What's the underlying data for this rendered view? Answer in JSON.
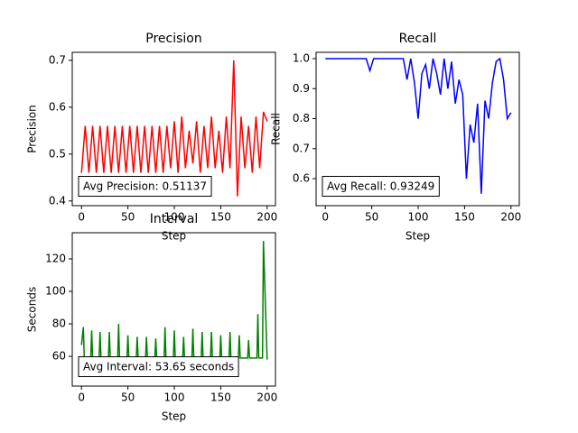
{
  "chart_data": [
    {
      "type": "line",
      "title": "Precision",
      "xlabel": "Step",
      "ylabel": "Precision",
      "annotation": "Avg Precision: 0.51137",
      "x": [
        0,
        4,
        8,
        12,
        16,
        20,
        24,
        28,
        32,
        36,
        40,
        44,
        48,
        52,
        56,
        60,
        64,
        68,
        72,
        76,
        80,
        84,
        88,
        92,
        96,
        100,
        104,
        108,
        112,
        116,
        120,
        124,
        128,
        132,
        136,
        140,
        144,
        148,
        152,
        156,
        160,
        164,
        168,
        172,
        176,
        180,
        184,
        188,
        192,
        196,
        200
      ],
      "series": [
        {
          "name": "Precision",
          "color": "#ff0000",
          "values": [
            0.46,
            0.56,
            0.46,
            0.56,
            0.46,
            0.56,
            0.46,
            0.56,
            0.46,
            0.56,
            0.46,
            0.56,
            0.46,
            0.56,
            0.46,
            0.56,
            0.46,
            0.56,
            0.46,
            0.56,
            0.46,
            0.56,
            0.46,
            0.56,
            0.47,
            0.57,
            0.46,
            0.58,
            0.47,
            0.55,
            0.48,
            0.57,
            0.46,
            0.56,
            0.47,
            0.58,
            0.47,
            0.55,
            0.46,
            0.58,
            0.47,
            0.7,
            0.41,
            0.58,
            0.47,
            0.56,
            0.46,
            0.58,
            0.47,
            0.59,
            0.57
          ]
        }
      ],
      "xlim": [
        -9.95,
        208.95
      ],
      "ylim": [
        0.39,
        0.717
      ],
      "xticks": [
        0,
        50,
        100,
        150,
        200
      ],
      "yticks": [
        0.4,
        0.5,
        0.6,
        0.7
      ]
    },
    {
      "type": "line",
      "title": "Recall",
      "xlabel": "Step",
      "ylabel": "Recall",
      "annotation": "Avg Recall: 0.93249",
      "x": [
        0,
        4,
        8,
        12,
        16,
        20,
        24,
        28,
        32,
        36,
        40,
        44,
        48,
        52,
        56,
        60,
        64,
        68,
        72,
        76,
        80,
        84,
        88,
        92,
        96,
        100,
        104,
        108,
        112,
        116,
        120,
        124,
        128,
        132,
        136,
        140,
        144,
        148,
        152,
        156,
        160,
        164,
        168,
        172,
        176,
        180,
        184,
        188,
        192,
        196,
        200
      ],
      "series": [
        {
          "name": "Recall",
          "color": "#0000ff",
          "values": [
            1.0,
            1.0,
            1.0,
            1.0,
            1.0,
            1.0,
            1.0,
            1.0,
            1.0,
            1.0,
            1.0,
            1.0,
            0.96,
            1.0,
            1.0,
            1.0,
            1.0,
            1.0,
            1.0,
            1.0,
            1.0,
            1.0,
            0.93,
            1.0,
            0.92,
            0.8,
            0.95,
            0.98,
            0.9,
            1.0,
            0.95,
            0.88,
            1.0,
            0.9,
            0.99,
            0.85,
            0.93,
            0.88,
            0.6,
            0.78,
            0.72,
            0.85,
            0.55,
            0.86,
            0.8,
            0.92,
            0.99,
            1.0,
            0.93,
            0.8,
            0.82
          ]
        }
      ],
      "xlim": [
        -9.95,
        208.95
      ],
      "ylim": [
        0.51,
        1.021
      ],
      "xticks": [
        0,
        50,
        100,
        150,
        200
      ],
      "yticks": [
        0.6,
        0.7,
        0.8,
        0.9,
        {
          "value": 1.0,
          "label": "1.0"
        }
      ]
    },
    {
      "type": "line",
      "title": "Interval",
      "xlabel": "Step",
      "ylabel": "Seconds",
      "annotation": "Avg Interval: 53.65 seconds",
      "x": [
        0,
        2,
        3,
        10,
        11,
        12,
        19,
        20,
        21,
        29,
        30,
        31,
        39,
        40,
        41,
        49,
        50,
        51,
        59,
        60,
        61,
        69,
        70,
        71,
        79,
        80,
        81,
        89,
        90,
        91,
        99,
        100,
        101,
        109,
        110,
        111,
        119,
        120,
        121,
        129,
        130,
        131,
        139,
        140,
        141,
        149,
        150,
        151,
        159,
        160,
        161,
        169,
        170,
        171,
        179,
        180,
        181,
        189,
        190,
        191,
        195,
        196,
        200
      ],
      "series": [
        {
          "name": "Interval",
          "color": "#008000",
          "values": [
            67,
            78,
            59,
            59,
            76,
            59,
            59,
            75,
            59,
            59,
            75,
            59,
            59,
            80,
            59,
            59,
            73,
            59,
            59,
            72,
            59,
            59,
            72,
            59,
            59,
            71,
            59,
            59,
            78,
            59,
            59,
            76,
            59,
            59,
            72,
            59,
            59,
            77,
            59,
            59,
            75,
            59,
            59,
            75,
            59,
            59,
            73,
            59,
            59,
            75,
            59,
            59,
            73,
            59,
            59,
            70,
            59,
            59,
            86,
            59,
            59,
            131,
            58
          ]
        }
      ],
      "xlim": [
        -9.95,
        208.95
      ],
      "ylim": [
        41.7,
        136.1
      ],
      "xticks": [
        0,
        50,
        100,
        150,
        200
      ],
      "yticks": [
        60,
        80,
        100,
        120
      ]
    }
  ]
}
